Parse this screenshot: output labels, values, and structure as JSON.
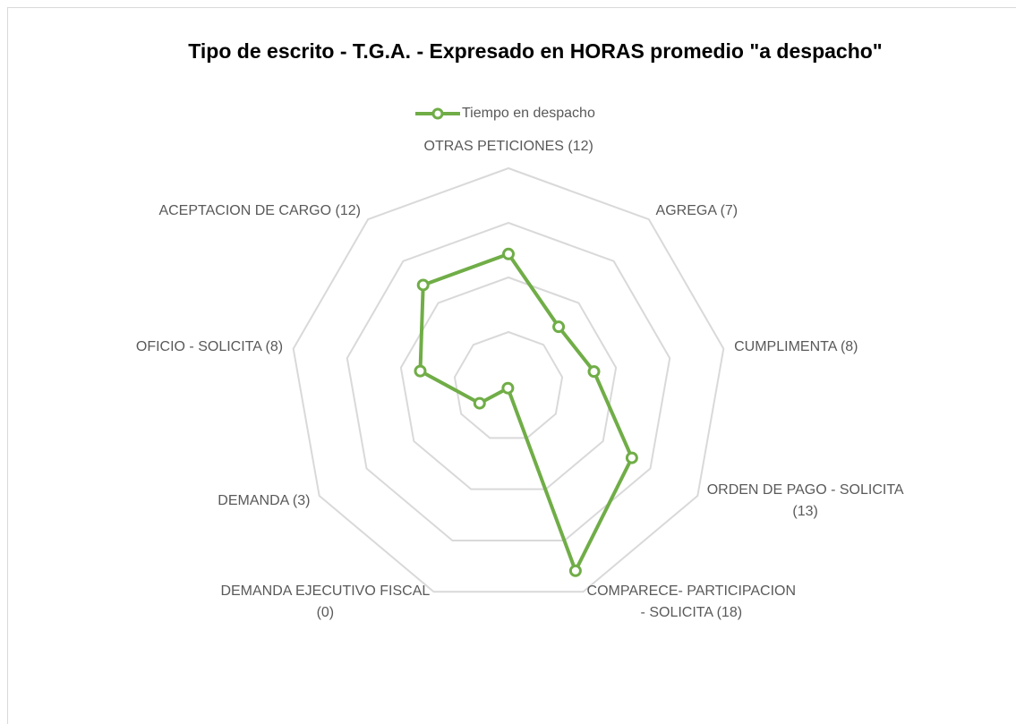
{
  "chart_data": {
    "type": "radar",
    "title": "Tipo de escrito - T.G.A. - Expresado en HORAS  promedio \"a despacho\"",
    "categories": [
      "OTRAS PETICIONES (12)",
      "AGREGA (7)",
      "CUMPLIMENTA (8)",
      "ORDEN DE PAGO - SOLICITA\n(13)",
      "COMPARECE- PARTICIPACION\n- SOLICITA (18)",
      "DEMANDA EJECUTIVO FISCAL\n(0)",
      "DEMANDA (3)",
      "OFICIO - SOLICITA (8)",
      "ACEPTACION DE CARGO (12)"
    ],
    "series": [
      {
        "name": "Tiempo en despacho",
        "color": "#70ad47",
        "values": [
          2.43,
          1.43,
          1.59,
          2.61,
          3.59,
          0.03,
          0.61,
          1.64,
          2.43
        ]
      }
    ],
    "ylim": [
      0,
      4
    ],
    "yticks": [
      0,
      1,
      2,
      3,
      4
    ],
    "grid": true,
    "legend": "top"
  }
}
